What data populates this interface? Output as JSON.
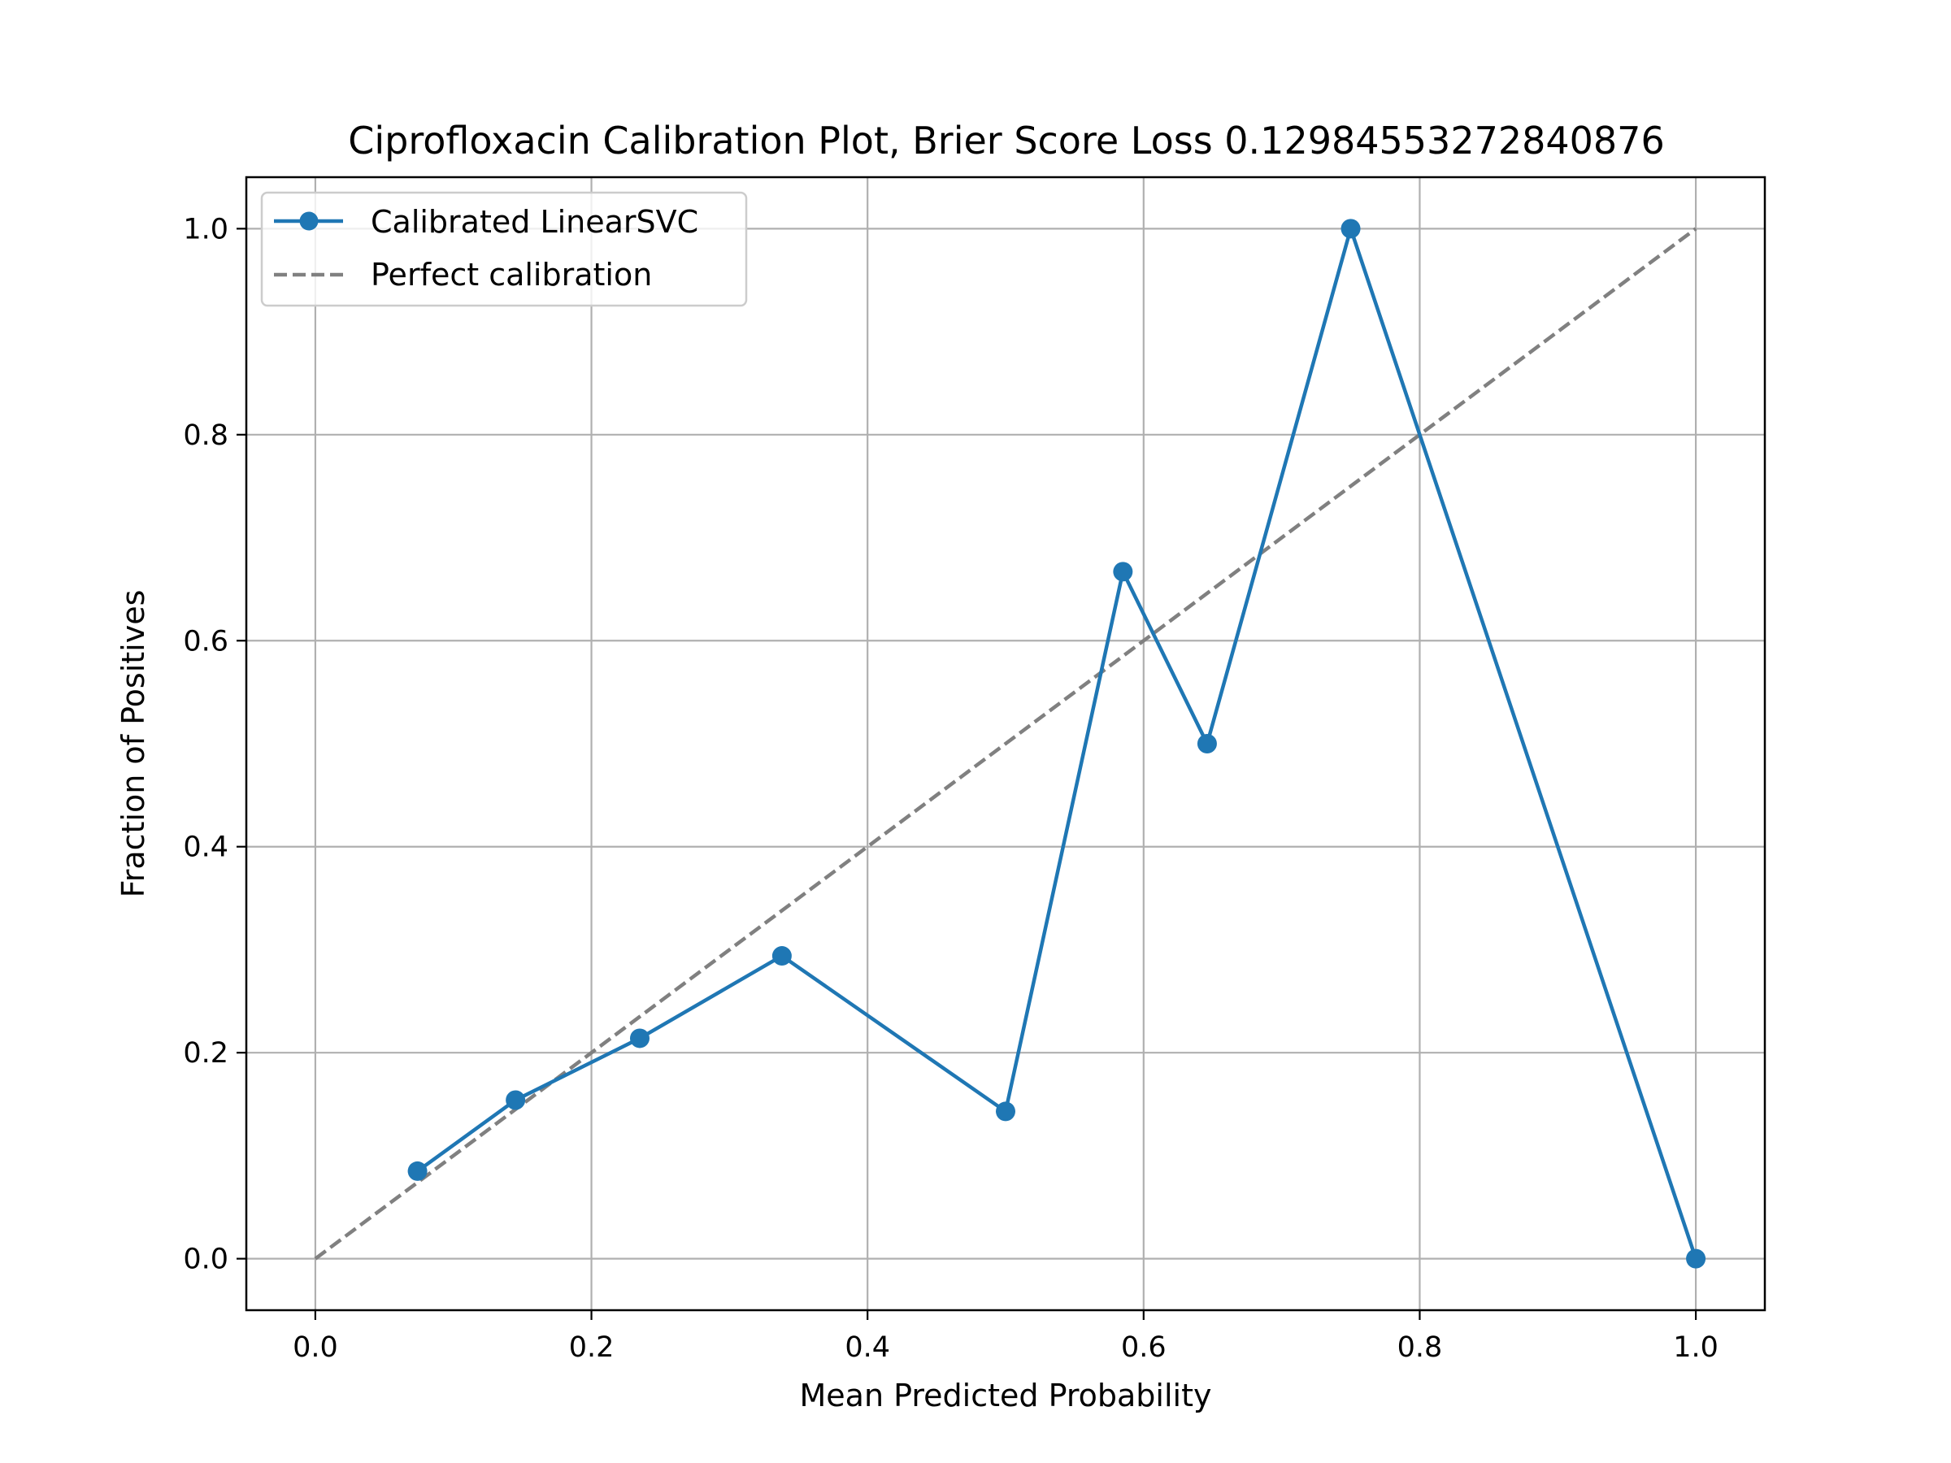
{
  "chart_data": {
    "type": "line",
    "title": "Ciprofloxacin Calibration Plot, Brier Score Loss 0.12984553272840876",
    "xlabel": "Mean Predicted Probability",
    "ylabel": "Fraction of Positives",
    "xlim": [
      -0.05,
      1.05
    ],
    "ylim": [
      -0.05,
      1.05
    ],
    "x_ticks": [
      0.0,
      0.2,
      0.4,
      0.6,
      0.8,
      1.0
    ],
    "y_ticks": [
      0.0,
      0.2,
      0.4,
      0.6,
      0.8,
      1.0
    ],
    "x_tick_labels": [
      "0.0",
      "0.2",
      "0.4",
      "0.6",
      "0.8",
      "1.0"
    ],
    "y_tick_labels": [
      "0.0",
      "0.2",
      "0.4",
      "0.6",
      "0.8",
      "1.0"
    ],
    "grid": true,
    "legend_position": "top-left",
    "series": [
      {
        "name": "Calibrated LinearSVC",
        "style": "solid-with-markers",
        "color": "#1f77b4",
        "x": [
          0.074,
          0.145,
          0.235,
          0.338,
          0.5,
          0.585,
          0.646,
          0.75,
          1.0
        ],
        "y": [
          0.085,
          0.154,
          0.214,
          0.294,
          0.143,
          0.667,
          0.5,
          1.0,
          0.0
        ]
      },
      {
        "name": "Perfect calibration",
        "style": "dashed",
        "color": "#808080",
        "x": [
          0.0,
          1.0
        ],
        "y": [
          0.0,
          1.0
        ]
      }
    ]
  }
}
